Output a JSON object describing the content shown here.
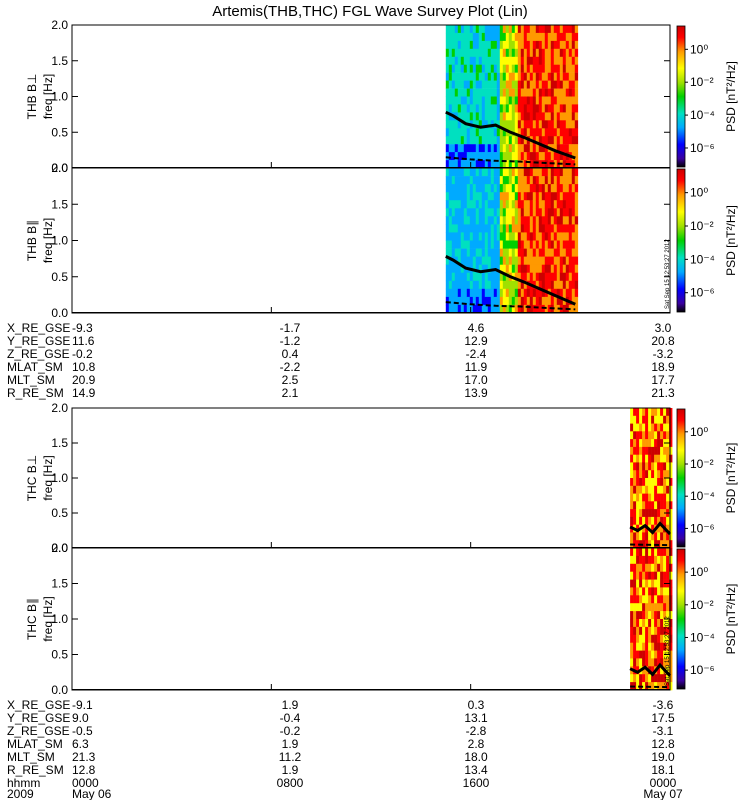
{
  "chart_data": {
    "type": "heatmap",
    "title": "Artemis(THB,THC) FGL Wave Survey Plot (Lin)",
    "colorbar": {
      "label": "PSD [nT²/Hz]",
      "scale": "log",
      "ticks": [
        "10⁰",
        "10⁻²",
        "10⁻⁴",
        "10⁻⁶"
      ],
      "colors": [
        "#000000",
        "#3a00a0",
        "#0000ff",
        "#00aaff",
        "#00e0c0",
        "#00d000",
        "#a0e000",
        "#ffff00",
        "#ff9900",
        "#ff0000",
        "#cc0000"
      ]
    },
    "ylim": [
      0,
      2.0
    ],
    "yticks": [
      "0.0",
      "0.5",
      "1.0",
      "1.5",
      "2.0"
    ],
    "ylabel": "freq [Hz]",
    "panels": [
      {
        "name": "THB B⊥",
        "data_start_hour": 15.0,
        "data_end_hour": 20.2,
        "line_solid": [
          [
            15.0,
            0.78
          ],
          [
            15.3,
            0.73
          ],
          [
            15.8,
            0.62
          ],
          [
            16.4,
            0.57
          ],
          [
            17.0,
            0.6
          ],
          [
            17.6,
            0.5
          ],
          [
            18.2,
            0.42
          ],
          [
            18.8,
            0.33
          ],
          [
            19.4,
            0.24
          ],
          [
            20.2,
            0.14
          ]
        ],
        "line_dashed": [
          [
            15.0,
            0.15
          ],
          [
            16.0,
            0.12
          ],
          [
            17.0,
            0.1
          ],
          [
            18.0,
            0.09
          ],
          [
            19.0,
            0.07
          ],
          [
            20.2,
            0.05
          ]
        ]
      },
      {
        "name": "THB B∥",
        "data_start_hour": 15.0,
        "data_end_hour": 20.2,
        "line_solid": [
          [
            15.0,
            0.78
          ],
          [
            15.3,
            0.73
          ],
          [
            15.8,
            0.62
          ],
          [
            16.4,
            0.57
          ],
          [
            17.0,
            0.6
          ],
          [
            17.6,
            0.5
          ],
          [
            18.2,
            0.42
          ],
          [
            18.8,
            0.33
          ],
          [
            19.4,
            0.24
          ],
          [
            20.2,
            0.12
          ]
        ],
        "line_dashed": [
          [
            15.0,
            0.15
          ],
          [
            16.0,
            0.12
          ],
          [
            17.0,
            0.1
          ],
          [
            18.0,
            0.09
          ],
          [
            19.0,
            0.07
          ],
          [
            20.2,
            0.05
          ]
        ]
      },
      {
        "name": "THC B⊥",
        "data_start_hour": 22.4,
        "data_end_hour": 24.0,
        "line_solid": [
          [
            22.4,
            0.3
          ],
          [
            22.7,
            0.25
          ],
          [
            23.0,
            0.32
          ],
          [
            23.3,
            0.22
          ],
          [
            23.6,
            0.35
          ],
          [
            24.0,
            0.2
          ]
        ],
        "line_dashed": [
          [
            22.4,
            0.05
          ],
          [
            24.0,
            0.04
          ]
        ]
      },
      {
        "name": "THC B∥",
        "data_start_hour": 22.4,
        "data_end_hour": 24.0,
        "line_solid": [
          [
            22.4,
            0.3
          ],
          [
            22.7,
            0.25
          ],
          [
            23.0,
            0.32
          ],
          [
            23.3,
            0.22
          ],
          [
            23.6,
            0.35
          ],
          [
            24.0,
            0.2
          ]
        ],
        "line_dashed": [
          [
            22.4,
            0.05
          ],
          [
            24.0,
            0.04
          ]
        ]
      }
    ],
    "x_hours": [
      0,
      8,
      16,
      24
    ],
    "stamp": "Sat Sep 15 12:53:27 2012",
    "orbit_thb": {
      "labels": [
        "X_RE_GSE",
        "Y_RE_GSE",
        "Z_RE_GSE",
        "MLAT_SM",
        "MLT_SM",
        "R_RE_SM"
      ],
      "columns": [
        [
          "-9.3",
          "11.6",
          "-0.2",
          "10.8",
          "20.9",
          "14.9"
        ],
        [
          "-1.7",
          "-1.2",
          "0.4",
          "-2.2",
          "2.5",
          "2.1"
        ],
        [
          "4.6",
          "12.9",
          "-2.4",
          "11.9",
          "17.0",
          "13.9"
        ],
        [
          "3.0",
          "20.8",
          "-3.2",
          "18.9",
          "17.7",
          "21.3"
        ]
      ]
    },
    "orbit_thc": {
      "labels": [
        "X_RE_GSE",
        "Y_RE_GSE",
        "Z_RE_GSE",
        "MLAT_SM",
        "MLT_SM",
        "R_RE_SM",
        "hhmm"
      ],
      "columns": [
        [
          "-9.1",
          "9.0",
          "-0.5",
          "6.3",
          "21.3",
          "12.8",
          "0000"
        ],
        [
          "1.9",
          "-0.4",
          "-0.2",
          "1.9",
          "11.2",
          "1.9",
          "0800"
        ],
        [
          "0.3",
          "13.1",
          "-2.8",
          "2.8",
          "18.0",
          "13.4",
          "1600"
        ],
        [
          "-3.6",
          "17.5",
          "-3.1",
          "12.8",
          "19.0",
          "18.1",
          "0000"
        ]
      ]
    },
    "date_labels": {
      "year": "2009",
      "start": "May 06",
      "end": "May 07"
    }
  }
}
